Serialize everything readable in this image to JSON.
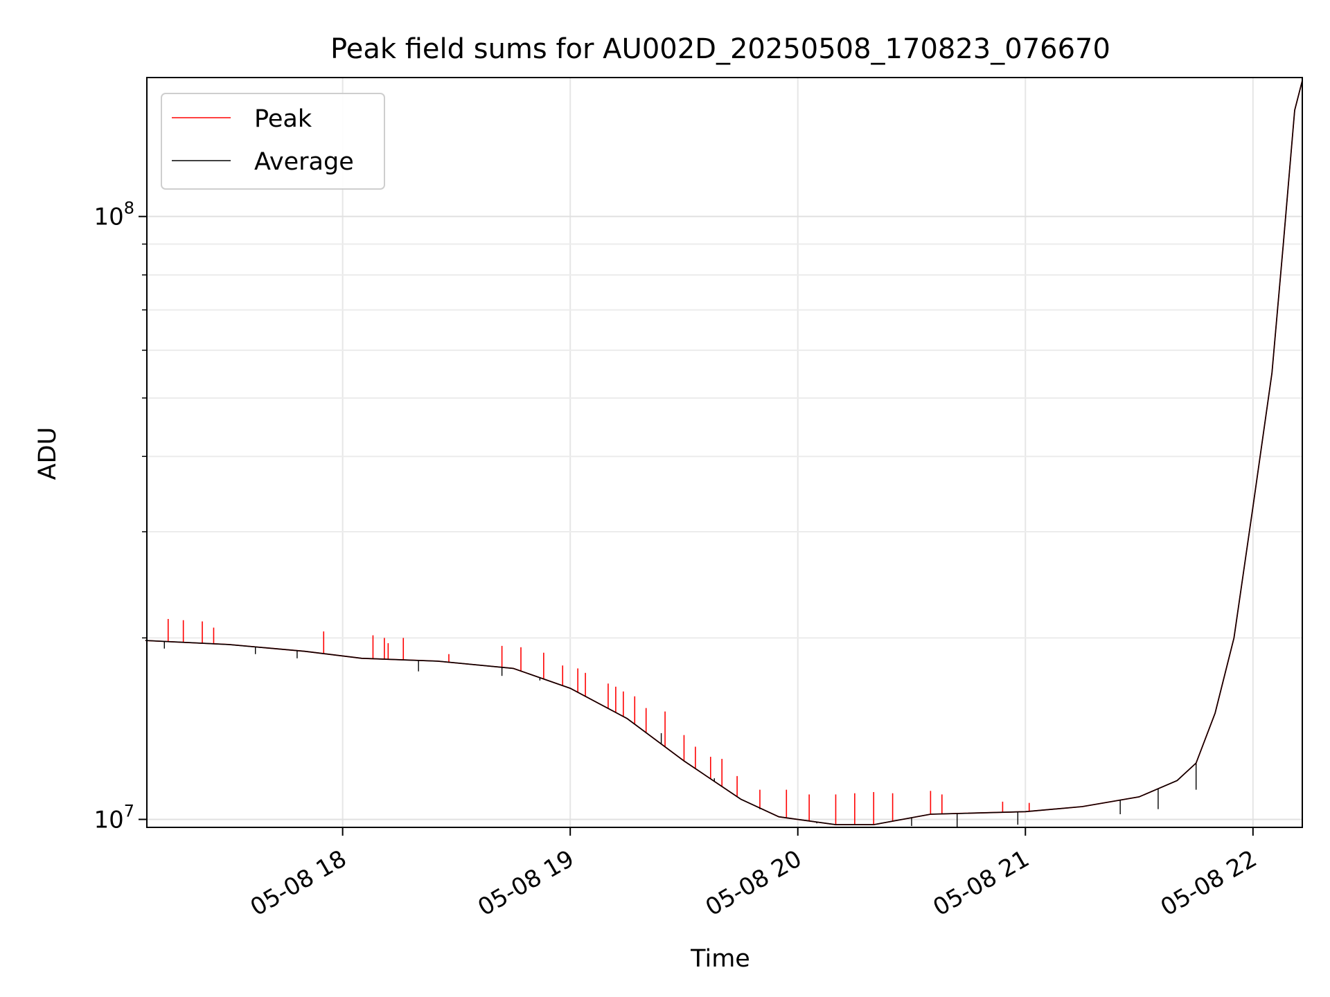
{
  "chart_data": {
    "type": "line",
    "title": "Peak field sums for AU002D_20250508_170823_076670",
    "xlabel": "Time",
    "ylabel": "ADU",
    "y_scale": "log",
    "ylim": [
      9700000,
      170000000
    ],
    "xlim": [
      "2025-05-08T17:08:23",
      "2025-05-08T22:13:00"
    ],
    "x_ticks": [
      {
        "time": "2025-05-08T18:00",
        "label": "05-08 18"
      },
      {
        "time": "2025-05-08T19:00",
        "label": "05-08 19"
      },
      {
        "time": "2025-05-08T20:00",
        "label": "05-08 20"
      },
      {
        "time": "2025-05-08T21:00",
        "label": "05-08 21"
      },
      {
        "time": "2025-05-08T22:00",
        "label": "05-08 22"
      }
    ],
    "y_ticks": [
      {
        "value": 10000000,
        "base": "10",
        "exp": "7"
      },
      {
        "value": 100000000,
        "base": "10",
        "exp": "8"
      }
    ],
    "grid": true,
    "legend_position": "top-left",
    "series": [
      {
        "name": "Peak",
        "color": "#ff0000",
        "spikes": [
          [
            "2025-05-08T17:14",
            21500000
          ],
          [
            "2025-05-08T17:18",
            21400000
          ],
          [
            "2025-05-08T17:23",
            21300000
          ],
          [
            "2025-05-08T17:26",
            20800000
          ],
          [
            "2025-05-08T17:55",
            20500000
          ],
          [
            "2025-05-08T18:08",
            20200000
          ],
          [
            "2025-05-08T18:11",
            20000000
          ],
          [
            "2025-05-08T18:12",
            19600000
          ],
          [
            "2025-05-08T18:16",
            20000000
          ],
          [
            "2025-05-08T18:28",
            18800000
          ],
          [
            "2025-05-08T18:42",
            19400000
          ],
          [
            "2025-05-08T18:47",
            19300000
          ],
          [
            "2025-05-08T18:53",
            18900000
          ],
          [
            "2025-05-08T18:58",
            18000000
          ],
          [
            "2025-05-08T19:02",
            17800000
          ],
          [
            "2025-05-08T19:04",
            17500000
          ],
          [
            "2025-05-08T19:10",
            16800000
          ],
          [
            "2025-05-08T19:12",
            16600000
          ],
          [
            "2025-05-08T19:14",
            16300000
          ],
          [
            "2025-05-08T19:17",
            16000000
          ],
          [
            "2025-05-08T19:20",
            15300000
          ],
          [
            "2025-05-08T19:25",
            15100000
          ],
          [
            "2025-05-08T19:30",
            13800000
          ],
          [
            "2025-05-08T19:33",
            13200000
          ],
          [
            "2025-05-08T19:37",
            12700000
          ],
          [
            "2025-05-08T19:40",
            12600000
          ],
          [
            "2025-05-08T19:44",
            11800000
          ],
          [
            "2025-05-08T19:50",
            11200000
          ],
          [
            "2025-05-08T19:57",
            11200000
          ],
          [
            "2025-05-08T20:03",
            11000000
          ],
          [
            "2025-05-08T20:10",
            11000000
          ],
          [
            "2025-05-08T20:15",
            11050000
          ],
          [
            "2025-05-08T20:20",
            11100000
          ],
          [
            "2025-05-08T20:25",
            11050000
          ],
          [
            "2025-05-08T20:35",
            11150000
          ],
          [
            "2025-05-08T20:38",
            11000000
          ],
          [
            "2025-05-08T20:54",
            10700000
          ],
          [
            "2025-05-08T21:01",
            10650000
          ],
          [
            "2025-05-08T21:45",
            12300000
          ]
        ]
      },
      {
        "name": "Average",
        "color": "#000000",
        "points": [
          [
            "2025-05-08T17:08",
            19800000
          ],
          [
            "2025-05-08T17:30",
            19500000
          ],
          [
            "2025-05-08T17:50",
            19000000
          ],
          [
            "2025-05-08T18:05",
            18500000
          ],
          [
            "2025-05-08T18:25",
            18300000
          ],
          [
            "2025-05-08T18:45",
            17800000
          ],
          [
            "2025-05-08T19:00",
            16500000
          ],
          [
            "2025-05-08T19:15",
            14700000
          ],
          [
            "2025-05-08T19:30",
            12500000
          ],
          [
            "2025-05-08T19:45",
            10800000
          ],
          [
            "2025-05-08T19:55",
            10100000
          ],
          [
            "2025-05-08T20:10",
            9800000
          ],
          [
            "2025-05-08T20:20",
            9800000
          ],
          [
            "2025-05-08T20:35",
            10200000
          ],
          [
            "2025-05-08T21:00",
            10300000
          ],
          [
            "2025-05-08T21:15",
            10500000
          ],
          [
            "2025-05-08T21:30",
            10900000
          ],
          [
            "2025-05-08T21:40",
            11600000
          ],
          [
            "2025-05-08T21:45",
            12400000
          ],
          [
            "2025-05-08T21:50",
            15000000
          ],
          [
            "2025-05-08T21:55",
            20000000
          ],
          [
            "2025-05-08T22:00",
            33000000
          ],
          [
            "2025-05-08T22:05",
            55000000
          ],
          [
            "2025-05-08T22:08",
            90000000
          ],
          [
            "2025-05-08T22:11",
            150000000
          ],
          [
            "2025-05-08T22:13",
            168000000
          ]
        ],
        "dips": [
          [
            "2025-05-08T17:13",
            19200000
          ],
          [
            "2025-05-08T17:37",
            18800000
          ],
          [
            "2025-05-08T17:48",
            18500000
          ],
          [
            "2025-05-08T18:20",
            17600000
          ],
          [
            "2025-05-08T18:42",
            17300000
          ],
          [
            "2025-05-08T18:52",
            17000000
          ],
          [
            "2025-05-08T19:08",
            15500000
          ],
          [
            "2025-05-08T19:24",
            13900000
          ],
          [
            "2025-05-08T19:38",
            11700000
          ],
          [
            "2025-05-08T19:50",
            10400000
          ],
          [
            "2025-05-08T20:05",
            9850000
          ],
          [
            "2025-05-08T20:30",
            9750000
          ],
          [
            "2025-05-08T20:42",
            9700000
          ],
          [
            "2025-05-08T20:58",
            9800000
          ],
          [
            "2025-05-08T21:25",
            10200000
          ],
          [
            "2025-05-08T21:35",
            10400000
          ],
          [
            "2025-05-08T21:45",
            11200000
          ]
        ]
      }
    ]
  }
}
